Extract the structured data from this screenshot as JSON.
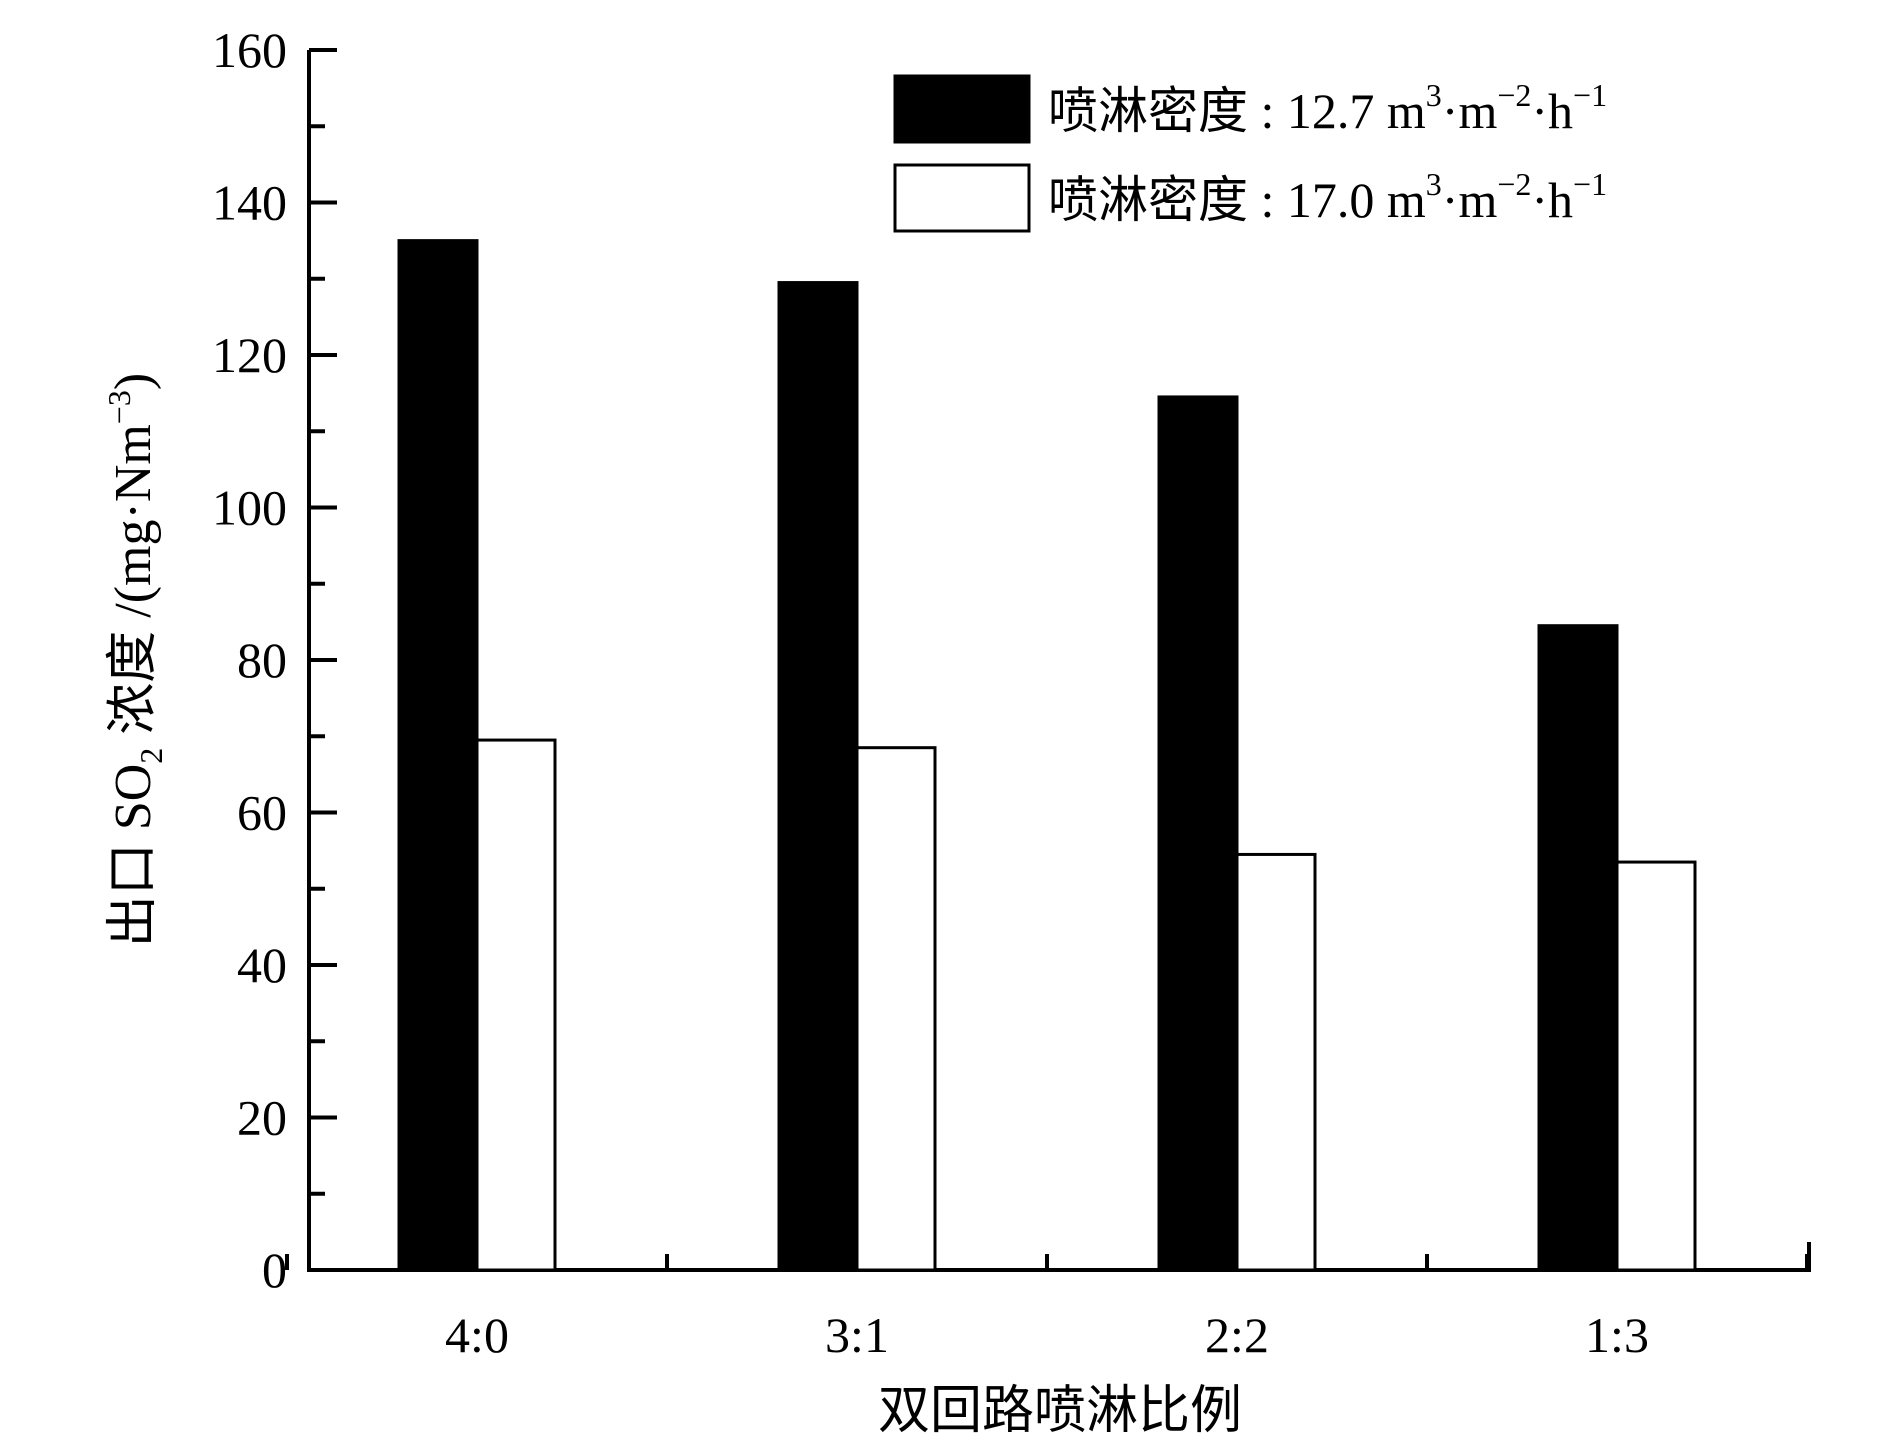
{
  "chart_data": {
    "type": "bar",
    "title": "",
    "xlabel": "双回路喷淋比例",
    "ylabel": {
      "prefix": "出口 SO",
      "sub": "2",
      "mid": " 浓度 /(mg·Nm",
      "sup": "−3",
      "suffix": ")"
    },
    "ylim": [
      0,
      160
    ],
    "yticks": [
      "0",
      "20",
      "40",
      "60",
      "80",
      "100",
      "120",
      "140",
      "160"
    ],
    "categories": [
      "4:0",
      "3:1",
      "2:2",
      "1:3"
    ],
    "series": [
      {
        "name": "喷淋密度 : 12.7 m³·m⁻²·h⁻¹",
        "label": {
          "text1": "喷淋密度 : 12.7 m",
          "sup1": "3",
          "text2": "·m",
          "sup2": "−2",
          "text3": "·h",
          "sup3": "−1"
        },
        "fill": "#000000",
        "values": [
          135,
          129.5,
          114.5,
          84.5
        ]
      },
      {
        "name": "喷淋密度 : 17.0 m³·m⁻²·h⁻¹",
        "label": {
          "text1": "喷淋密度 : 17.0 m",
          "sup1": "3",
          "text2": "·m",
          "sup2": "−2",
          "text3": "·h",
          "sup3": "−1"
        },
        "fill": "#ffffff",
        "values": [
          69.5,
          68.5,
          54.5,
          53.5
        ]
      }
    ],
    "grid": false,
    "legend_position": "top-right"
  }
}
